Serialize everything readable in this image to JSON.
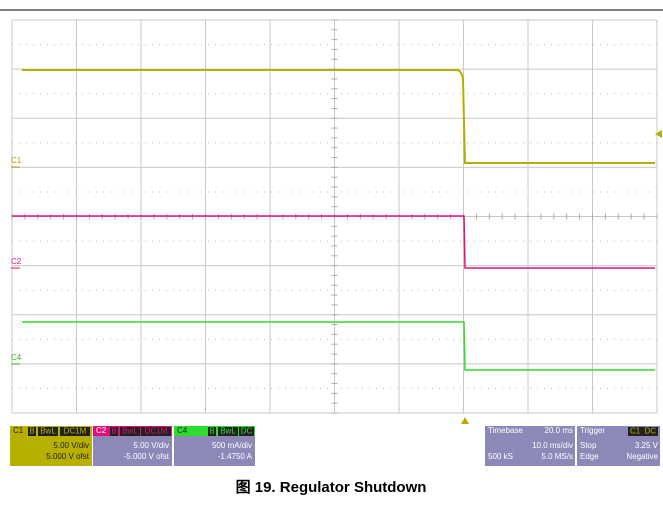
{
  "channels": [
    {
      "label": "C1",
      "badges": [
        "B",
        "BwL",
        "DC1M"
      ],
      "scale": "5.00 V/div",
      "offset": "5.000 V ofst"
    },
    {
      "label": "C2",
      "badges": [
        "B",
        "BwL",
        "DC1M"
      ],
      "scale": "5.00 V/div",
      "offset": "-5.000 V ofst"
    },
    {
      "label": "C4",
      "badges": [
        "B",
        "BwL",
        "DC"
      ],
      "scale": "500 mA/div",
      "offset": "-1.4750 A"
    }
  ],
  "timebase": {
    "label": "Timebase",
    "delay": "20.0 ms",
    "scale": "10.0 ms/div",
    "samples": "500 kS",
    "sample_rate": "5.0 MS/s"
  },
  "trigger": {
    "label": "Trigger",
    "channel": "C1",
    "coupling": "DC",
    "mode": "Stop",
    "level": "3.25 V",
    "type": "Edge",
    "slope": "Negative"
  },
  "trace_labels": [
    "C1",
    "C2",
    "C4"
  ],
  "caption": "图 19. Regulator Shutdown"
}
